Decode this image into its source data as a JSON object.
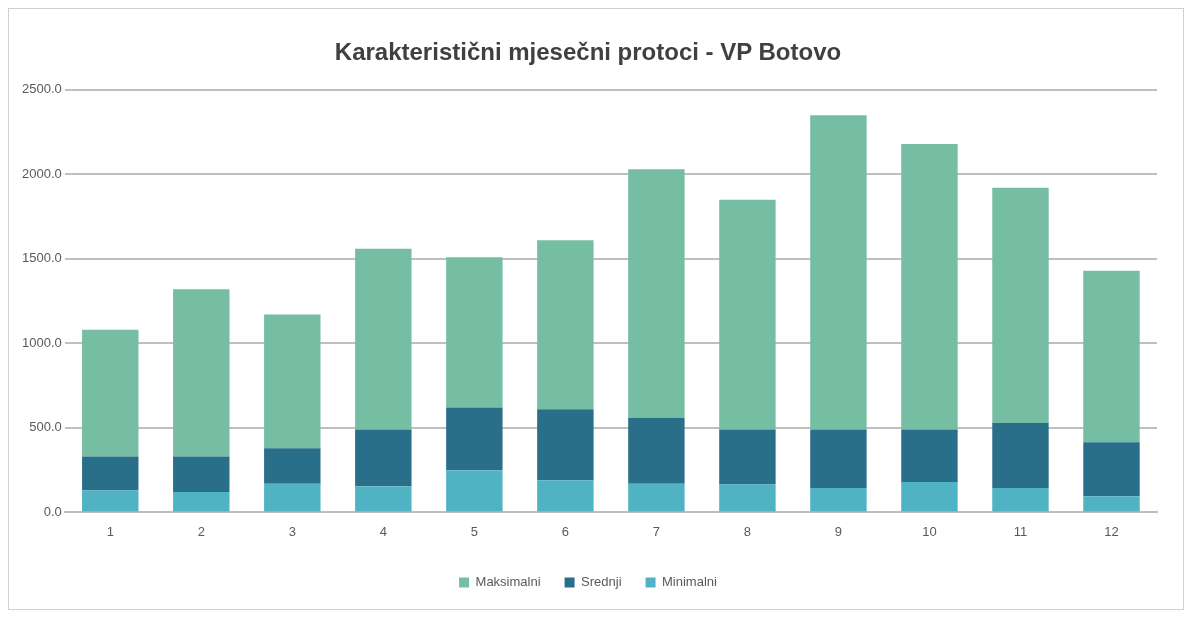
{
  "chart_data": {
    "type": "bar",
    "title": "Karakteristični mjesečni protoci - VP Botovo",
    "categories": [
      "1",
      "2",
      "3",
      "4",
      "5",
      "6",
      "7",
      "8",
      "9",
      "10",
      "11",
      "12"
    ],
    "stacked": true,
    "series": [
      {
        "name": "Minimalni",
        "color": "#4fb3c3",
        "values": [
          130,
          120,
          170,
          155,
          250,
          190,
          170,
          165,
          145,
          180,
          145,
          95
        ]
      },
      {
        "name": "Srednji",
        "color": "#2a6f8a",
        "values": [
          200,
          210,
          210,
          335,
          370,
          420,
          390,
          325,
          345,
          310,
          385,
          320
        ]
      },
      {
        "name": "Maksimalni",
        "color": "#76bea3",
        "values": [
          750,
          990,
          790,
          1070,
          890,
          1000,
          1470,
          1360,
          1860,
          1690,
          1390,
          1015
        ]
      }
    ],
    "ylim": [
      0,
      2500
    ],
    "yticks": [
      {
        "value": 0,
        "label": "0.0"
      },
      {
        "value": 500,
        "label": "500.0"
      },
      {
        "value": 1000,
        "label": "1000.0"
      },
      {
        "value": 1500,
        "label": "1500.0"
      },
      {
        "value": 2000,
        "label": "2000.0"
      },
      {
        "value": 2500,
        "label": "2500.0"
      }
    ],
    "grid": "y",
    "legend": "bottom"
  }
}
